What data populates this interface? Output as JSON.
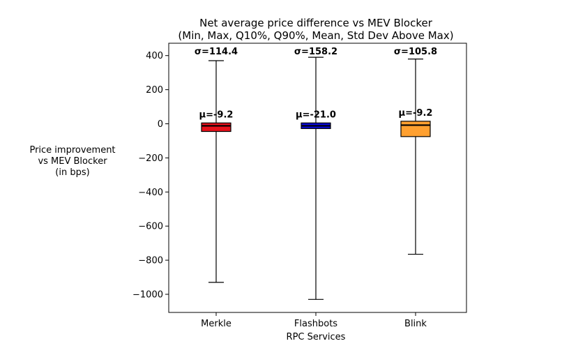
{
  "chart_data": {
    "type": "box",
    "title": "Net average price difference vs MEV Blocker",
    "subtitle": "(Min, Max, Q10%, Q90%, Mean, Std Dev Above Max)",
    "xlabel": "RPC Services",
    "ylabel_lines": [
      "Price improvement",
      "vs MEV Blocker",
      "(in bps)"
    ],
    "ylim": [
      -1100,
      460
    ],
    "yticks": [
      400,
      200,
      0,
      -200,
      -400,
      -600,
      -800,
      -1000
    ],
    "ytick_labels": [
      "400",
      "200",
      "0",
      "−200",
      "−400",
      "−600",
      "−800",
      "−1000"
    ],
    "categories": [
      "Merkle",
      "Flashbots",
      "Blink"
    ],
    "series": [
      {
        "name": "Merkle",
        "min": -930,
        "max": 370,
        "q10": -45,
        "q90": 5,
        "median": -12,
        "mean": -9.2,
        "std": 114.4,
        "mean_label": "μ=-9.2",
        "std_label": "σ=114.4",
        "color": "#e8111c"
      },
      {
        "name": "Flashbots",
        "min": -1030,
        "max": 390,
        "q10": -28,
        "q90": 5,
        "median": -12,
        "mean": -21.0,
        "std": 158.2,
        "mean_label": "μ=-21.0",
        "std_label": "σ=158.2",
        "color": "#0a0ad8"
      },
      {
        "name": "Blink",
        "min": -765,
        "max": 380,
        "q10": -75,
        "q90": 15,
        "median": -8,
        "mean": -9.2,
        "std": 105.8,
        "mean_label": "μ=-9.2",
        "std_label": "σ=105.8",
        "color": "#ffa030"
      }
    ]
  }
}
